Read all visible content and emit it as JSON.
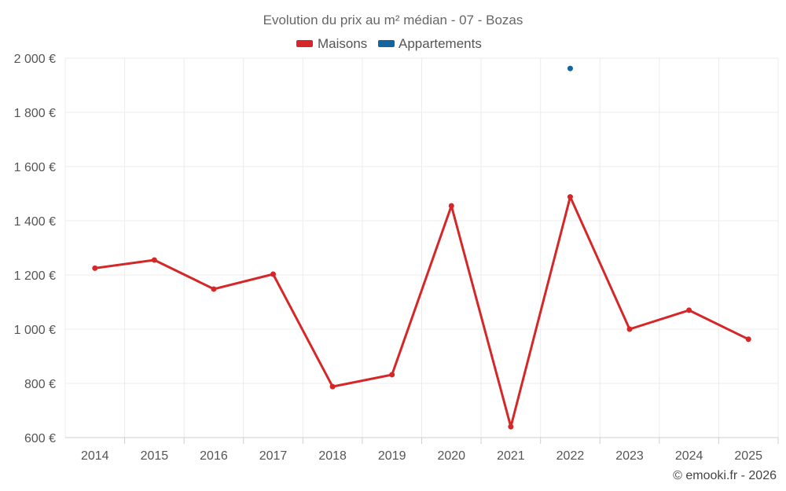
{
  "chart_data": {
    "type": "line",
    "title": "Evolution du prix au m² médian - 07 - Bozas",
    "categories": [
      "2014",
      "2015",
      "2016",
      "2017",
      "2018",
      "2019",
      "2020",
      "2021",
      "2022",
      "2023",
      "2024",
      "2025"
    ],
    "series": [
      {
        "name": "Maisons",
        "color": "#d62728",
        "values": [
          1225,
          1255,
          1148,
          1203,
          788,
          832,
          1455,
          640,
          1488,
          1000,
          1070,
          963
        ]
      },
      {
        "name": "Appartements",
        "color": "#1464a0",
        "values": [
          null,
          null,
          null,
          null,
          null,
          null,
          null,
          null,
          1962,
          null,
          null,
          null
        ]
      }
    ],
    "yaxis": {
      "min": 600,
      "max": 2000,
      "ticks": [
        600,
        800,
        1000,
        1200,
        1400,
        1600,
        1800,
        2000
      ],
      "tick_labels": [
        "600 €",
        "800 €",
        "1 000 €",
        "1 200 €",
        "1 400 €",
        "1 600 €",
        "1 800 €",
        "2 000 €"
      ]
    },
    "grid": true,
    "legend_position": "top-center",
    "credit": "© emooki.fr - 2026"
  }
}
